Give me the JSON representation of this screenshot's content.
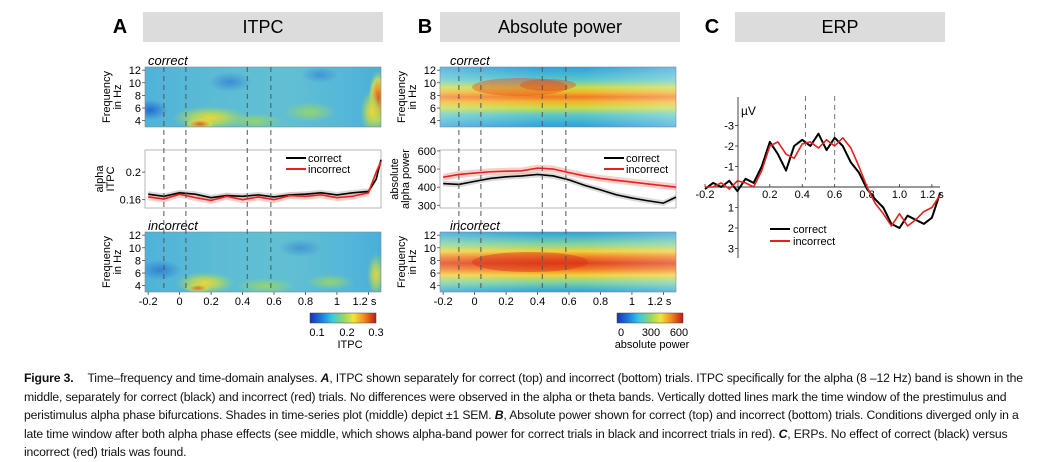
{
  "panels": [
    {
      "letter": "A",
      "title": "ITPC"
    },
    {
      "letter": "B",
      "title": "Absolute power"
    },
    {
      "letter": "C",
      "title": "ERP"
    }
  ],
  "tf_labels": {
    "correct": "correct",
    "incorrect": "incorrect"
  },
  "freq_axis": {
    "label_line1": "Frequency",
    "label_line2": "in Hz",
    "ticks": [
      "12",
      "10",
      "8",
      "6",
      "4"
    ]
  },
  "time_axis": {
    "ticks": [
      "-0.2",
      "0",
      "0.2",
      "0.4",
      "0.6",
      "0.8",
      "1",
      "1.2 s"
    ]
  },
  "itpc_colorbar": {
    "ticks": [
      "0.1",
      "0.2",
      "0.3"
    ],
    "label": "ITPC"
  },
  "power_colorbar": {
    "ticks": [
      "0",
      "300",
      "600"
    ],
    "label": "absolute power"
  },
  "colors": {
    "correct": "#000000",
    "incorrect": "#e4231f",
    "dashed": "#555555",
    "title_box": "#dcdcdc"
  },
  "chart_data": [
    {
      "type": "line",
      "panel": "A-middle",
      "ylabel": "alpha ITPC",
      "yticks": [
        "0.2",
        "0.16"
      ],
      "ylim": [
        0.148,
        0.232
      ],
      "x": [
        -0.2,
        -0.1,
        0,
        0.1,
        0.2,
        0.3,
        0.4,
        0.5,
        0.6,
        0.7,
        0.8,
        0.9,
        1.0,
        1.1,
        1.2,
        1.25,
        1.28
      ],
      "series": [
        {
          "name": "correct",
          "values": [
            0.168,
            0.165,
            0.17,
            0.168,
            0.163,
            0.166,
            0.165,
            0.167,
            0.164,
            0.167,
            0.168,
            0.17,
            0.167,
            0.17,
            0.172,
            0.19,
            0.218
          ]
        },
        {
          "name": "incorrect",
          "values": [
            0.164,
            0.161,
            0.168,
            0.163,
            0.159,
            0.165,
            0.16,
            0.164,
            0.16,
            0.166,
            0.165,
            0.167,
            0.163,
            0.165,
            0.17,
            0.2,
            0.215
          ]
        }
      ]
    },
    {
      "type": "line",
      "panel": "B-middle",
      "ylabel": "absolute alpha power",
      "yticks": [
        "600",
        "500",
        "400",
        "300"
      ],
      "ylim": [
        285,
        605
      ],
      "x": [
        -0.2,
        -0.1,
        0,
        0.1,
        0.2,
        0.3,
        0.4,
        0.5,
        0.6,
        0.7,
        0.8,
        0.9,
        1.0,
        1.1,
        1.2,
        1.28
      ],
      "series": [
        {
          "name": "correct",
          "values": [
            420,
            415,
            432,
            448,
            457,
            462,
            470,
            462,
            440,
            410,
            385,
            358,
            340,
            325,
            312,
            345
          ]
        },
        {
          "name": "incorrect",
          "values": [
            455,
            470,
            478,
            485,
            488,
            490,
            505,
            500,
            480,
            462,
            448,
            438,
            428,
            418,
            408,
            400
          ]
        }
      ]
    },
    {
      "type": "line",
      "panel": "C",
      "ylabel": "µV",
      "xticks": [
        "-0.2",
        "0.2",
        "0.4",
        "0.6",
        "0.8",
        "1.0",
        "1.2 s"
      ],
      "yticks": [
        "-3",
        "-2",
        "-1",
        "1",
        "2",
        "3"
      ],
      "xlim": [
        -0.2,
        1.25
      ],
      "ylim": [
        3.5,
        -3.3
      ],
      "legend": "bottom-left",
      "x": [
        -0.2,
        -0.15,
        -0.1,
        -0.05,
        0,
        0.05,
        0.1,
        0.15,
        0.2,
        0.25,
        0.3,
        0.35,
        0.4,
        0.45,
        0.5,
        0.55,
        0.6,
        0.65,
        0.7,
        0.75,
        0.8,
        0.85,
        0.9,
        0.95,
        1.0,
        1.05,
        1.1,
        1.15,
        1.2,
        1.25
      ],
      "series": [
        {
          "name": "correct",
          "values": [
            0.1,
            -0.2,
            0.0,
            -0.3,
            0.2,
            -0.4,
            -0.2,
            -1.0,
            -2.2,
            -1.6,
            -0.8,
            -2.0,
            -2.3,
            -2.0,
            -2.6,
            -1.8,
            -2.4,
            -2.0,
            -1.2,
            -0.7,
            0.1,
            0.6,
            1.0,
            1.8,
            2.0,
            1.4,
            1.6,
            1.8,
            1.5,
            0.3
          ]
        },
        {
          "name": "incorrect",
          "values": [
            0.0,
            0.0,
            -0.2,
            0.1,
            -0.3,
            -0.2,
            0.0,
            -0.8,
            -2.0,
            -2.2,
            -1.6,
            -1.4,
            -2.1,
            -2.2,
            -1.9,
            -2.3,
            -2.0,
            -2.4,
            -1.9,
            -1.0,
            0.0,
            0.8,
            1.3,
            1.9,
            1.3,
            1.9,
            1.6,
            1.2,
            1.0,
            0.4
          ]
        }
      ]
    }
  ],
  "caption": {
    "label": "Figure 3.",
    "s1": "Time–frequency and time-domain analyses. ",
    "A": "A",
    "s2": ", ITPC shown separately for correct (top) and incorrect (bottom) trials. ITPC specifically for the alpha (8 –12 Hz) band is shown in the middle, separately for correct (black) and incorrect (red) trials. No differences were observed in the alpha or theta bands. Vertically dotted lines mark the time window of the prestimulus and peristimulus alpha phase bifurcations. Shades in time-series plot (middle) depict ±1 SEM. ",
    "B": "B",
    "s3": ", Absolute power shown for correct (top) and incorrect (bottom) trials. Conditions diverged only in a late time window after both alpha phase effects (see middle, which shows alpha-band power for correct trials in black and incorrect trials in red). ",
    "C": "C",
    "s4": ", ERPs. No effect of correct (black) versus incorrect (red) trials was found."
  }
}
